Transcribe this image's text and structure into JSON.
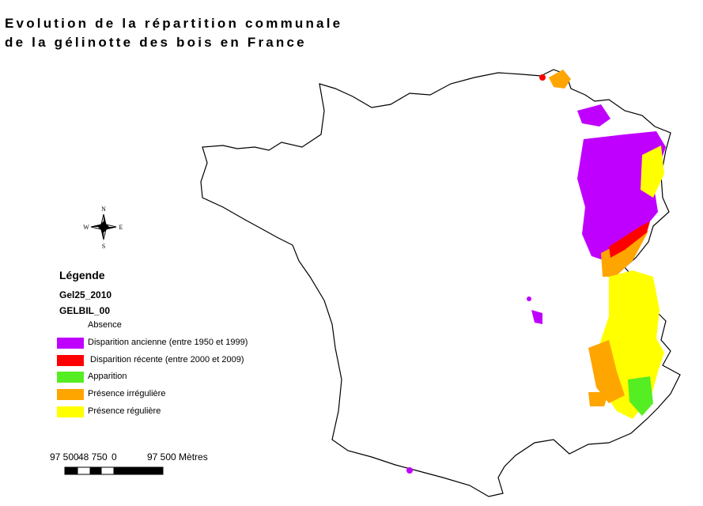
{
  "title": [
    "Evolution de la répartition communale",
    "de la gélinotte des bois en France"
  ],
  "compass": {
    "n": "N",
    "s": "S",
    "e": "E",
    "w": "W"
  },
  "legend": {
    "title": "Légende",
    "layer": "Gel25_2010",
    "field": "GELBIL_00",
    "items": [
      {
        "label": "Absence",
        "color": "#ffffff"
      },
      {
        "label": "Disparition ancienne (entre 1950 et 1999)",
        "color": "#c000ff"
      },
      {
        "label": " Disparition récente (entre 2000 et 2009)",
        "color": "#ff0000"
      },
      {
        "label": "Apparition",
        "color": "#55ee22"
      },
      {
        "label": "Présence irrégulière",
        "color": "#ffa500"
      },
      {
        "label": "Présence régulière",
        "color": "#ffff00"
      }
    ]
  },
  "scale_bar": {
    "labels": [
      "97 500",
      "48 750",
      "0",
      "97 500 Mètres"
    ]
  }
}
